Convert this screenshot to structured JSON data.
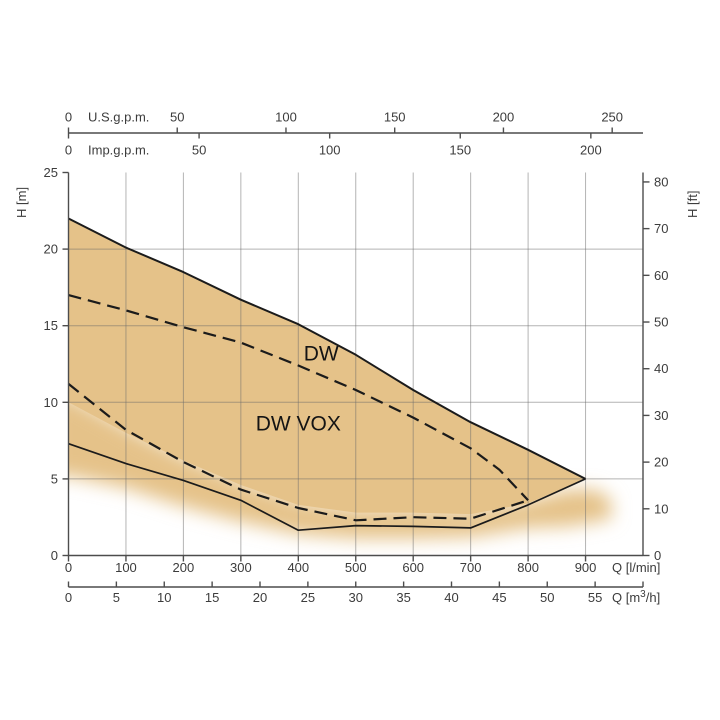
{
  "chart_data": {
    "type": "area",
    "description": "Pump performance envelope chart, head H versus flow Q",
    "x_axes": {
      "us_gpm": {
        "label": "U.S.g.p.m.",
        "ticks": [
          0,
          50,
          100,
          150,
          200,
          250
        ],
        "lmin_per_unit": 3.78541
      },
      "imp_gpm": {
        "label": "Imp.g.p.m.",
        "ticks": [
          0,
          50,
          100,
          150,
          200
        ],
        "lmin_per_unit": 4.54609
      },
      "lmin": {
        "label": "Q [l/min]",
        "ticks": [
          0,
          100,
          200,
          300,
          400,
          500,
          600,
          700,
          800,
          900
        ],
        "range": [
          0,
          1000
        ]
      },
      "m3h": {
        "label_parts": [
          "Q [m",
          "3",
          "/h]"
        ],
        "ticks": [
          0,
          5,
          10,
          15,
          20,
          25,
          30,
          35,
          40,
          45,
          50,
          55
        ],
        "end_tick": 60,
        "lmin_per_unit": 16.66667
      }
    },
    "y_axes": {
      "m": {
        "label": "H [m]",
        "ticks": [
          0,
          5,
          10,
          15,
          20,
          25
        ],
        "range": [
          0,
          25
        ]
      },
      "ft": {
        "label": "H [ft]",
        "ticks": [
          0,
          10,
          20,
          30,
          40,
          50,
          60,
          70,
          80
        ],
        "m_per_unit": 0.3048
      }
    },
    "grid": {
      "x_lmin": [
        100,
        200,
        300,
        400,
        500,
        600,
        700,
        800,
        900
      ],
      "y_m": [
        5,
        10,
        15,
        20
      ]
    },
    "series": [
      {
        "name": "DW upper limit (solid)",
        "line": "solid",
        "width": 2,
        "points": [
          [
            0,
            22
          ],
          [
            100,
            20.1
          ],
          [
            200,
            18.5
          ],
          [
            300,
            16.7
          ],
          [
            400,
            15.1
          ],
          [
            500,
            13.1
          ],
          [
            600,
            10.8
          ],
          [
            700,
            8.7
          ],
          [
            800,
            6.9
          ],
          [
            900,
            5
          ]
        ]
      },
      {
        "name": "DW lower limit (dashed)",
        "line": "dashed",
        "width": 2.2,
        "points": [
          [
            0,
            17
          ],
          [
            100,
            16
          ],
          [
            200,
            14.9
          ],
          [
            300,
            13.9
          ],
          [
            400,
            12.4
          ],
          [
            500,
            10.8
          ],
          [
            600,
            9.0
          ],
          [
            700,
            7.0
          ],
          [
            750,
            5.6
          ],
          [
            800,
            3.6
          ]
        ]
      },
      {
        "name": "DW VOX upper limit (dashed)",
        "line": "dashed",
        "width": 2.2,
        "points": [
          [
            0,
            11.2
          ],
          [
            100,
            8.2
          ],
          [
            200,
            6.1
          ],
          [
            300,
            4.3
          ],
          [
            400,
            3.1
          ],
          [
            500,
            2.3
          ],
          [
            600,
            2.5
          ],
          [
            700,
            2.4
          ],
          [
            800,
            3.6
          ]
        ]
      },
      {
        "name": "DW VOX lower limit (solid)",
        "line": "solid",
        "width": 1.7,
        "points": [
          [
            0,
            7.3
          ],
          [
            100,
            6.0
          ],
          [
            200,
            4.9
          ],
          [
            300,
            3.6
          ],
          [
            400,
            1.65
          ],
          [
            500,
            1.95
          ],
          [
            600,
            1.9
          ],
          [
            700,
            1.8
          ],
          [
            800,
            3.3
          ],
          [
            900,
            5
          ]
        ]
      }
    ],
    "region_labels": [
      {
        "text": "DW",
        "q": 440,
        "h": 13.2
      },
      {
        "text": "DW VOX",
        "q": 400,
        "h": 8.6
      }
    ],
    "fill": {
      "color": "#e5c289",
      "solid_bottom": [
        [
          0,
          10
        ],
        [
          100,
          8
        ],
        [
          200,
          6.2
        ],
        [
          300,
          4.6
        ],
        [
          400,
          3.3
        ],
        [
          500,
          2.8
        ],
        [
          600,
          2.8
        ],
        [
          700,
          2.7
        ],
        [
          800,
          3.4
        ],
        [
          900,
          5
        ]
      ],
      "fade_top": [
        [
          0,
          10.5
        ],
        [
          100,
          8.4
        ],
        [
          200,
          6.5
        ],
        [
          300,
          4.9
        ],
        [
          400,
          3.6
        ],
        [
          500,
          3.1
        ],
        [
          600,
          3.1
        ],
        [
          700,
          3.0
        ],
        [
          800,
          3.6
        ],
        [
          870,
          4.3
        ],
        [
          920,
          4.3
        ],
        [
          945,
          3.6
        ]
      ],
      "fade_bottom": [
        [
          0,
          5.2
        ],
        [
          100,
          4.4
        ],
        [
          200,
          3.2
        ],
        [
          300,
          2.2
        ],
        [
          400,
          1.4
        ],
        [
          500,
          1.1
        ],
        [
          600,
          1.1
        ],
        [
          700,
          1.2
        ],
        [
          800,
          1.8
        ],
        [
          870,
          1.9
        ],
        [
          945,
          2.4
        ]
      ]
    },
    "colors": {
      "fill": "#e5c289",
      "grid": "rgba(105,105,105,0.5)",
      "axis": "#4d4d4d",
      "curve": "#1b1b1b",
      "text": "#3c3c3c"
    }
  }
}
